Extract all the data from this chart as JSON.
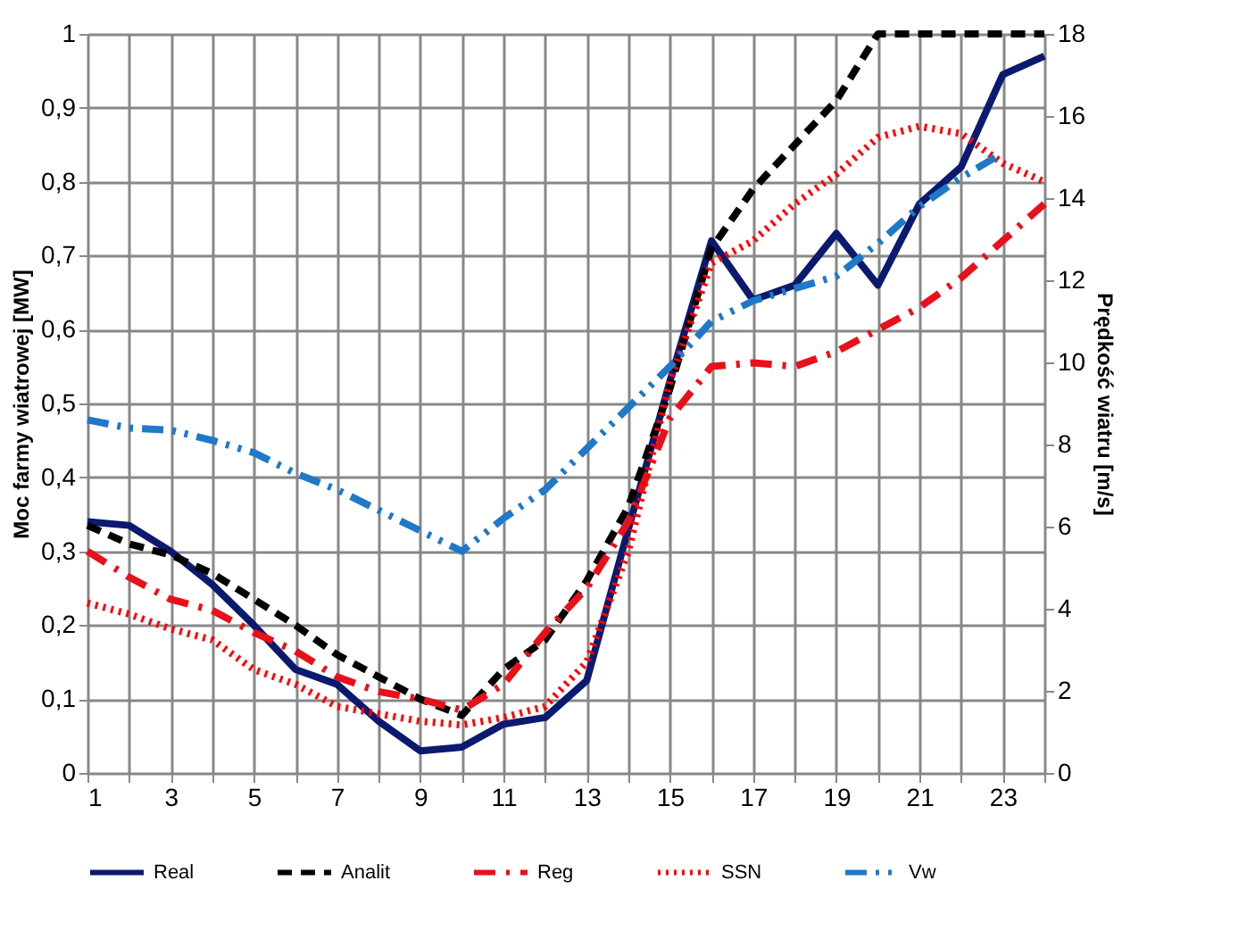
{
  "chart_data": {
    "type": "line",
    "ylabel": "Moc farmy wiatrowej [MW]",
    "y2label": "Prędkość wiatru [m/s]",
    "x": [
      1,
      2,
      3,
      4,
      5,
      6,
      7,
      8,
      9,
      10,
      11,
      12,
      13,
      14,
      15,
      16,
      17,
      18,
      19,
      20,
      21,
      22,
      23,
      24
    ],
    "xlim": [
      1,
      24
    ],
    "xticks": [
      1,
      {
        "value": 2,
        "label": null
      },
      3,
      {
        "value": 4,
        "label": null
      },
      5,
      {
        "value": 6,
        "label": null
      },
      7,
      {
        "value": 8,
        "label": null
      },
      9,
      {
        "value": 10,
        "label": null
      },
      11,
      {
        "value": 12,
        "label": null
      },
      13,
      {
        "value": 14,
        "label": null
      },
      15,
      {
        "value": 16,
        "label": null
      },
      17,
      {
        "value": 18,
        "label": null
      },
      19,
      {
        "value": 20,
        "label": null
      },
      21,
      {
        "value": 22,
        "label": null
      },
      23,
      {
        "value": 24,
        "label": null
      }
    ],
    "ylim": [
      0,
      1
    ],
    "yticks": [
      0,
      {
        "value": 0.1,
        "label": "0,1"
      },
      {
        "value": 0.2,
        "label": "0,2"
      },
      {
        "value": 0.3,
        "label": "0,3"
      },
      {
        "value": 0.4,
        "label": "0,4"
      },
      {
        "value": 0.5,
        "label": "0,5"
      },
      {
        "value": 0.6,
        "label": "0,6"
      },
      {
        "value": 0.7,
        "label": "0,7"
      },
      {
        "value": 0.8,
        "label": "0,8"
      },
      {
        "value": 0.9,
        "label": "0,9"
      },
      1
    ],
    "y2lim": [
      0,
      18
    ],
    "y2ticks": [
      0,
      2,
      4,
      6,
      8,
      10,
      12,
      14,
      16,
      18
    ],
    "grid": true,
    "legend": "bottom",
    "marker": "none",
    "series": [
      {
        "name": "Real",
        "color": "#0b1a6e",
        "line_style": "solid",
        "values": [
          0.34,
          0.335,
          0.3,
          0.255,
          0.2,
          0.14,
          0.12,
          0.07,
          0.03,
          0.035,
          0.066,
          0.075,
          0.125,
          0.33,
          0.53,
          0.72,
          0.64,
          0.66,
          0.73,
          0.66,
          0.77,
          0.82,
          0.945,
          0.97
        ]
      },
      {
        "name": "Analit",
        "color": "#000000",
        "line_style": "dashed",
        "values": [
          0.335,
          0.31,
          0.295,
          0.27,
          0.235,
          0.2,
          0.16,
          0.13,
          0.1,
          0.078,
          0.14,
          0.18,
          0.26,
          0.36,
          0.52,
          0.71,
          0.79,
          0.85,
          0.91,
          1.0,
          1.0,
          1.0,
          1.0,
          1.0
        ]
      },
      {
        "name": "Reg",
        "color": "#e8101a",
        "line_style": "dashdot",
        "values": [
          0.3,
          0.265,
          0.235,
          0.22,
          0.19,
          0.165,
          0.13,
          0.11,
          0.1,
          0.085,
          0.12,
          0.19,
          0.25,
          0.34,
          0.48,
          0.55,
          0.555,
          0.55,
          0.57,
          0.6,
          0.63,
          0.67,
          0.72,
          0.77
        ]
      },
      {
        "name": "SSN",
        "color": "#ff0000",
        "line_style": "dotted",
        "values": [
          0.23,
          0.215,
          0.195,
          0.18,
          0.14,
          0.12,
          0.09,
          0.08,
          0.07,
          0.065,
          0.075,
          0.09,
          0.15,
          0.3,
          0.53,
          0.69,
          0.72,
          0.77,
          0.81,
          0.86,
          0.875,
          0.865,
          0.825,
          0.8
        ]
      },
      {
        "name": "Vw",
        "color": "#1f78c8",
        "line_style": "dashdotdot",
        "axis": "y2",
        "values": [
          8.6,
          8.4,
          8.35,
          8.1,
          7.8,
          7.3,
          6.9,
          6.4,
          5.9,
          5.4,
          6.2,
          6.9,
          7.9,
          8.9,
          9.9,
          11.0,
          11.5,
          11.8,
          12.1,
          12.9,
          13.8,
          14.5,
          15.1,
          null
        ]
      }
    ]
  }
}
